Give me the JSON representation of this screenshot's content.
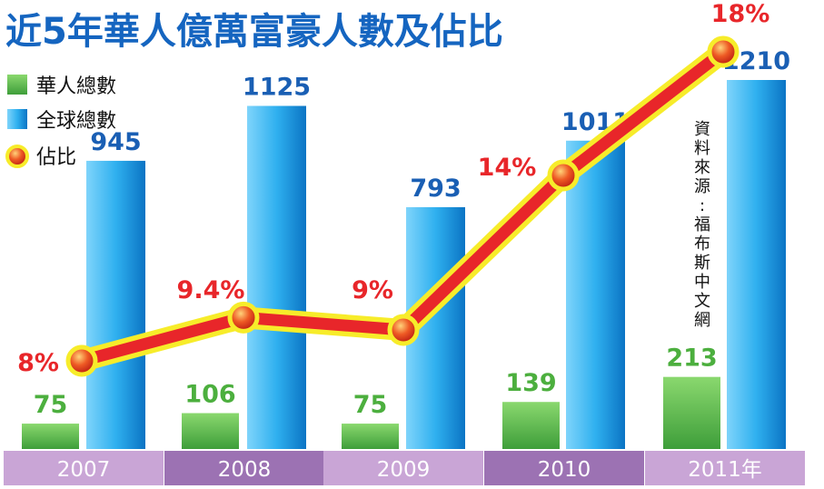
{
  "chart_data": {
    "type": "bar",
    "title": "近5年華人億萬富豪人數及佔比",
    "categories": [
      "2007",
      "2008",
      "2009",
      "2010",
      "2011年"
    ],
    "series": [
      {
        "name": "華人總數",
        "values": [
          75,
          106,
          75,
          139,
          213
        ],
        "color": "#5cb85c"
      },
      {
        "name": "全球總數",
        "values": [
          945,
          1125,
          793,
          1011,
          1210
        ],
        "color": "#1a9ee8"
      }
    ],
    "line_series": {
      "name": "佔比",
      "values": [
        8,
        9.4,
        9,
        14,
        18
      ],
      "labels": [
        "8%",
        "9.4%",
        "9%",
        "14%",
        "18%"
      ],
      "color": "#e8262a",
      "outline": "#f7ec2a"
    },
    "bar_value_labels": {
      "chinese": [
        "75",
        "106",
        "75",
        "139",
        "213"
      ],
      "global": [
        "945",
        "1125",
        "793",
        "1011",
        "1210"
      ]
    },
    "legend": {
      "placement": "top-left",
      "items": [
        "華人總數",
        "全球總數",
        "佔比"
      ]
    },
    "source_note": "資料來源：福布斯中文網",
    "ylim": [
      0,
      1210
    ],
    "grid": false,
    "colors": {
      "title": "#1565c0",
      "bar_label": "#1a5fb4",
      "pct_label": "#e8262a",
      "axis_band_light": "#c9a5d6",
      "axis_band_dark": "#9c72b3"
    }
  }
}
